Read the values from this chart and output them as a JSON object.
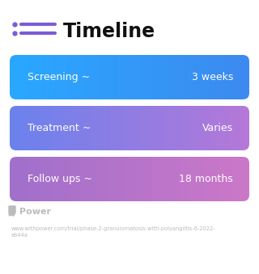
{
  "title": "Timeline",
  "title_fontsize": 17,
  "title_color": "#111111",
  "icon_color": "#7B5CD6",
  "background_color": "#ffffff",
  "rows": [
    {
      "label": "Screening ~",
      "value": "3 weeks",
      "color_left": "#29A8FF",
      "color_right": "#3D8AF0"
    },
    {
      "label": "Treatment ~",
      "value": "Varies",
      "color_left": "#6B82EE",
      "color_right": "#B578D8"
    },
    {
      "label": "Follow ups ~",
      "value": "18 months",
      "color_left": "#A070CC",
      "color_right": "#CC78C8"
    }
  ],
  "row_text_color": "#ffffff",
  "row_label_fontsize": 9,
  "row_value_fontsize": 9,
  "footer_logo_text": "Power",
  "footer_url_line1": "www.withpower.com/trial/phase-2-granulomatosis-with-polyangiitis-6-2022-",
  "footer_url_line2": "eb44a",
  "footer_color": "#bbbbbb",
  "footer_fontsize": 4.8,
  "footer_logo_fontsize": 8
}
